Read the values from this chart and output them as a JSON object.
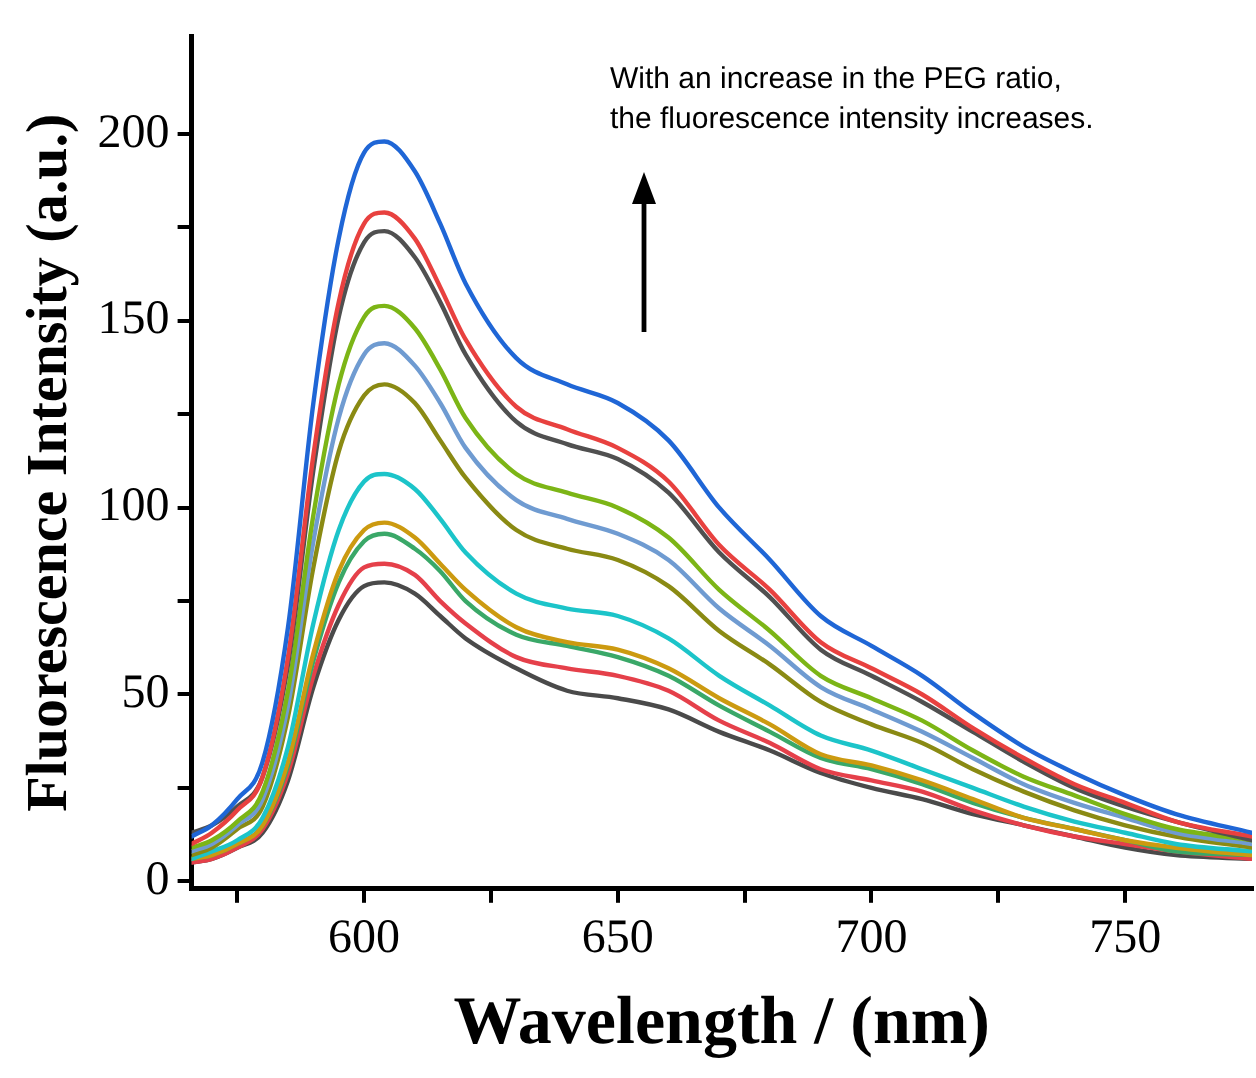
{
  "chart_data": {
    "type": "line",
    "xlabel": "Wavelength / (nm)",
    "ylabel": "Fluorescence Intensity (a.u.)",
    "annotations": [
      "With an increase in the PEG ratio,\nthe fluorescence intensity increases."
    ],
    "x": [
      566,
      570,
      575,
      580,
      585,
      590,
      595,
      600,
      604,
      610,
      615,
      620,
      630,
      640,
      650,
      660,
      670,
      680,
      690,
      700,
      710,
      720,
      730,
      740,
      750,
      760,
      775
    ],
    "xlim": [
      566,
      775
    ],
    "xticks": [
      {
        "value": 575,
        "label": null
      },
      600,
      {
        "value": 625,
        "label": null
      },
      650,
      {
        "value": 675,
        "label": null
      },
      700,
      {
        "value": 725,
        "label": null
      },
      750
    ],
    "ylim": [
      -2,
      226
    ],
    "yticks": [
      0,
      {
        "value": 25,
        "label": null
      },
      50,
      {
        "value": 75,
        "label": null
      },
      100,
      {
        "value": 125,
        "label": null
      },
      150,
      {
        "value": 175,
        "label": null
      },
      200
    ],
    "grid": false,
    "legend": false,
    "marker": "none",
    "line_style": "solid",
    "series": [
      {
        "color": "#1f66d6",
        "values": [
          12,
          15,
          22,
          32,
          68,
          128,
          172,
          195,
          198,
          190,
          176,
          160,
          140,
          133,
          128,
          118,
          100,
          86,
          71,
          63,
          55,
          45,
          36,
          29,
          23,
          18,
          13
        ]
      },
      {
        "color": "#e8413f",
        "values": [
          10,
          13,
          19,
          28,
          60,
          114,
          155,
          176,
          179,
          172,
          159,
          145,
          127,
          121,
          116,
          107,
          90,
          78,
          64,
          57,
          50,
          41,
          33,
          26,
          21,
          16,
          12
        ]
      },
      {
        "color": "#505050",
        "values": [
          13,
          15,
          20,
          28,
          58,
          110,
          151,
          171,
          174,
          167,
          155,
          141,
          123,
          117,
          113,
          104,
          88,
          76,
          62,
          55,
          48,
          40,
          32,
          25,
          20,
          16,
          11
        ]
      },
      {
        "color": "#7cb516",
        "values": [
          9,
          11,
          16,
          24,
          51,
          98,
          133,
          151,
          154,
          148,
          137,
          124,
          109,
          104,
          100,
          92,
          78,
          67,
          55,
          49,
          43,
          35,
          28,
          23,
          18,
          14,
          11
        ]
      },
      {
        "color": "#6f9bd1",
        "values": [
          8,
          10,
          15,
          22,
          47,
          91,
          124,
          141,
          144,
          138,
          128,
          116,
          102,
          97,
          93,
          86,
          73,
          63,
          52,
          46,
          40,
          33,
          26,
          21,
          17,
          13,
          10
        ]
      },
      {
        "color": "#8a8a13",
        "values": [
          7,
          9,
          14,
          20,
          44,
          84,
          115,
          130,
          133,
          128,
          118,
          108,
          94,
          89,
          86,
          79,
          67,
          58,
          48,
          42,
          37,
          30,
          24,
          19,
          15,
          12,
          9
        ]
      },
      {
        "color": "#1cc4c9",
        "values": [
          6,
          8,
          11,
          17,
          36,
          69,
          94,
          107,
          109,
          105,
          97,
          88,
          77,
          73,
          71,
          65,
          55,
          47,
          39,
          35,
          30,
          25,
          20,
          16,
          13,
          10,
          8
        ]
      },
      {
        "color": "#cc9a10",
        "values": [
          6,
          7,
          10,
          15,
          32,
          61,
          83,
          94,
          96,
          92,
          85,
          78,
          68,
          64,
          62,
          57,
          49,
          42,
          34,
          31,
          27,
          22,
          17,
          14,
          11,
          9,
          7
        ]
      },
      {
        "color": "#3aa868",
        "values": [
          6,
          7,
          10,
          15,
          31,
          59,
          80,
          91,
          93,
          89,
          83,
          75,
          66,
          63,
          60,
          55,
          47,
          40,
          33,
          30,
          26,
          21,
          17,
          14,
          11,
          8,
          7
        ]
      },
      {
        "color": "#e5404a",
        "values": [
          5,
          6,
          9,
          14,
          29,
          55,
          74,
          84,
          85,
          82,
          75,
          69,
          60,
          57,
          55,
          51,
          43,
          37,
          30,
          27,
          24,
          19,
          15,
          12,
          10,
          8,
          6
        ]
      },
      {
        "color": "#4a4a4a",
        "values": [
          5,
          6,
          9,
          13,
          27,
          52,
          70,
          79,
          80,
          77,
          71,
          65,
          57,
          51,
          49,
          46,
          40,
          35,
          29,
          25,
          22,
          18,
          15,
          12,
          9,
          7,
          6
        ]
      }
    ]
  }
}
